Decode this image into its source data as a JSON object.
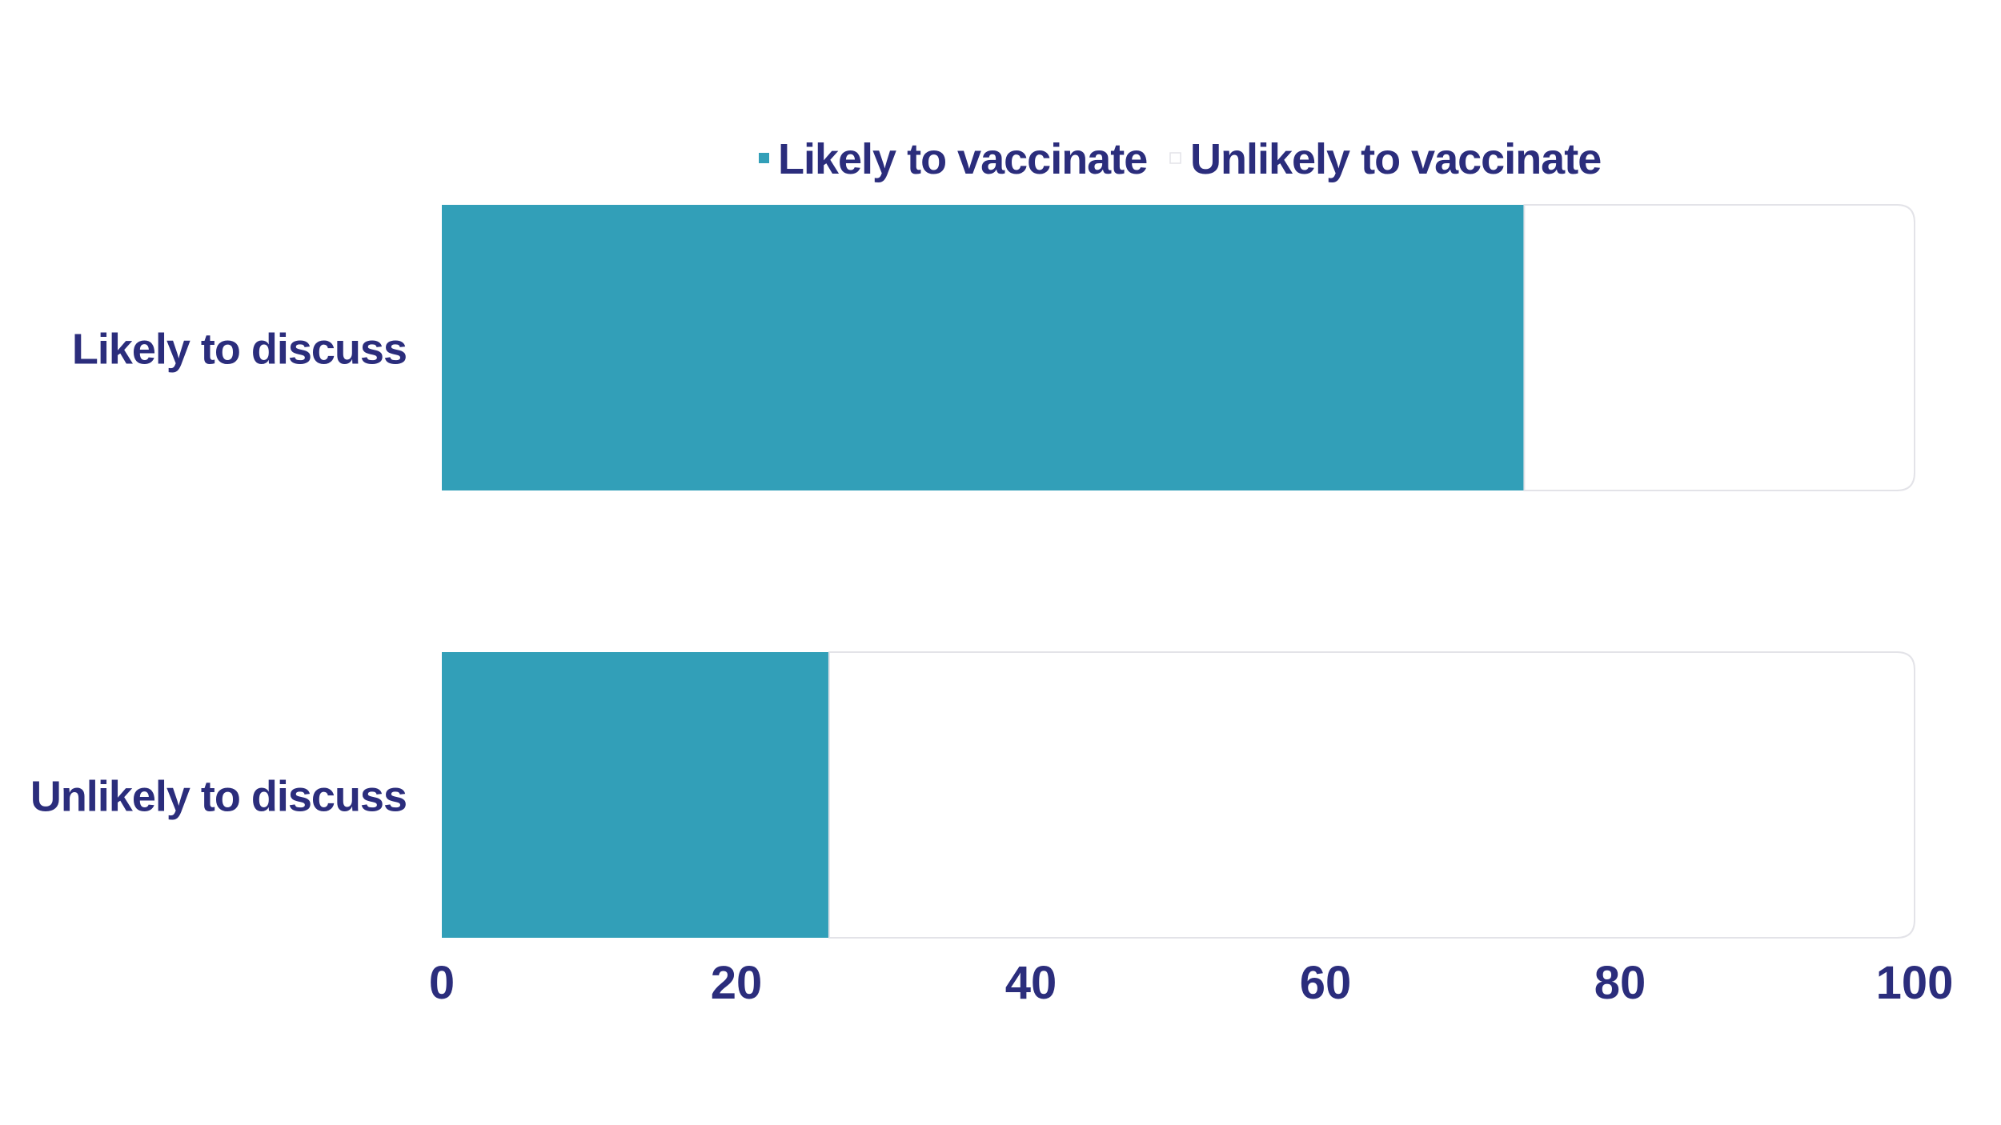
{
  "chart_data": {
    "type": "bar",
    "orientation": "horizontal",
    "stacked": true,
    "categories": [
      "Likely to discuss",
      "Unlikely to discuss"
    ],
    "series": [
      {
        "name": "Likely to vaccinate",
        "values": [
          73.5,
          26.3
        ],
        "color": "#329fb8"
      },
      {
        "name": "Unlikely to vaccinate",
        "values": [
          26.5,
          73.7
        ],
        "color": "#ffffff"
      }
    ],
    "xlim": [
      0,
      100
    ],
    "xticks": [
      "0",
      "20",
      "40",
      "60",
      "80",
      "100"
    ],
    "xlabel": "",
    "ylabel": "",
    "title": "",
    "legend_position": "top",
    "grid": false
  },
  "colors": {
    "text": "#2b2d7c",
    "bar_border": "#e3e3e8"
  }
}
